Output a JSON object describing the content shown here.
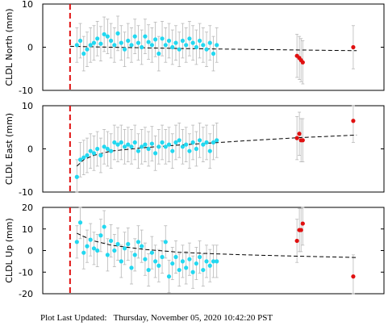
{
  "footer_text": "Plot Last Updated:   Thursday, November 05, 2020 10:42:20 PST",
  "colors": {
    "observed": "#22d8f0",
    "recent": "#e01010",
    "event_line": "#e01010",
    "error_bar": "#b8b8b8",
    "model": "#000000"
  },
  "chart_data": [
    {
      "type": "scatter",
      "ylabel": "CLDL North (mm)",
      "ylim": [
        -10,
        10
      ],
      "yticks": [
        10,
        0,
        -10
      ],
      "event_x": 0.08,
      "observed": [
        {
          "x": 0.1,
          "y": 0.5
        },
        {
          "x": 0.11,
          "y": 1.5
        },
        {
          "x": 0.12,
          "y": -1.5
        },
        {
          "x": 0.13,
          "y": -0.5
        },
        {
          "x": 0.14,
          "y": 0.5
        },
        {
          "x": 0.15,
          "y": 1.0
        },
        {
          "x": 0.16,
          "y": 2.0
        },
        {
          "x": 0.17,
          "y": 0.8
        },
        {
          "x": 0.18,
          "y": 3.0
        },
        {
          "x": 0.19,
          "y": 2.5
        },
        {
          "x": 0.2,
          "y": 1.5
        },
        {
          "x": 0.21,
          "y": 0.5
        },
        {
          "x": 0.22,
          "y": 3.2
        },
        {
          "x": 0.23,
          "y": 1.0
        },
        {
          "x": 0.24,
          "y": -0.5
        },
        {
          "x": 0.25,
          "y": 1.5
        },
        {
          "x": 0.26,
          "y": 0.5
        },
        {
          "x": 0.27,
          "y": 2.5
        },
        {
          "x": 0.28,
          "y": 1.0
        },
        {
          "x": 0.29,
          "y": 0.0
        },
        {
          "x": 0.3,
          "y": 2.5
        },
        {
          "x": 0.31,
          "y": 1.2
        },
        {
          "x": 0.32,
          "y": 0.5
        },
        {
          "x": 0.33,
          "y": 1.8
        },
        {
          "x": 0.34,
          "y": -1.5
        },
        {
          "x": 0.35,
          "y": 2.0
        },
        {
          "x": 0.36,
          "y": 0.5
        },
        {
          "x": 0.37,
          "y": 1.5
        },
        {
          "x": 0.38,
          "y": 0.0
        },
        {
          "x": 0.39,
          "y": 1.0
        },
        {
          "x": 0.4,
          "y": -0.5
        },
        {
          "x": 0.41,
          "y": 1.5
        },
        {
          "x": 0.42,
          "y": 0.5
        },
        {
          "x": 0.43,
          "y": 2.0
        },
        {
          "x": 0.44,
          "y": 1.0
        },
        {
          "x": 0.45,
          "y": 0.0
        },
        {
          "x": 0.46,
          "y": 1.5
        },
        {
          "x": 0.47,
          "y": 0.5
        },
        {
          "x": 0.48,
          "y": -0.5
        },
        {
          "x": 0.49,
          "y": 1.0
        },
        {
          "x": 0.5,
          "y": -1.5
        },
        {
          "x": 0.51,
          "y": 0.5
        }
      ],
      "recent": [
        {
          "x": 0.745,
          "y": -2.0
        },
        {
          "x": 0.752,
          "y": -2.5
        },
        {
          "x": 0.757,
          "y": -3.0
        },
        {
          "x": 0.762,
          "y": -3.5
        },
        {
          "x": 0.91,
          "y": 0.0
        }
      ],
      "error_bars": {
        "observed": 4.0,
        "recent": 5.0
      },
      "model_curve": [
        [
          0.08,
          0.2
        ],
        [
          0.2,
          0.0
        ],
        [
          0.4,
          -0.3
        ],
        [
          0.6,
          -0.5
        ],
        [
          0.8,
          -0.7
        ],
        [
          0.92,
          -0.8
        ]
      ]
    },
    {
      "type": "scatter",
      "ylabel": "CLDL East (mm)",
      "ylim": [
        -10,
        10
      ],
      "yticks": [
        10,
        0,
        -10
      ],
      "event_x": 0.08,
      "observed": [
        {
          "x": 0.1,
          "y": -6.5
        },
        {
          "x": 0.11,
          "y": -2.5
        },
        {
          "x": 0.12,
          "y": -2.0
        },
        {
          "x": 0.13,
          "y": -1.5
        },
        {
          "x": 0.14,
          "y": -0.5
        },
        {
          "x": 0.15,
          "y": -1.0
        },
        {
          "x": 0.16,
          "y": 0.0
        },
        {
          "x": 0.17,
          "y": -1.5
        },
        {
          "x": 0.18,
          "y": 0.5
        },
        {
          "x": 0.19,
          "y": 0.0
        },
        {
          "x": 0.2,
          "y": -0.5
        },
        {
          "x": 0.21,
          "y": 1.5
        },
        {
          "x": 0.22,
          "y": 1.0
        },
        {
          "x": 0.23,
          "y": 1.5
        },
        {
          "x": 0.24,
          "y": 0.5
        },
        {
          "x": 0.25,
          "y": 1.0
        },
        {
          "x": 0.26,
          "y": 0.5
        },
        {
          "x": 0.27,
          "y": 1.5
        },
        {
          "x": 0.28,
          "y": -0.5
        },
        {
          "x": 0.29,
          "y": 0.5
        },
        {
          "x": 0.3,
          "y": 1.0
        },
        {
          "x": 0.31,
          "y": 0.0
        },
        {
          "x": 0.32,
          "y": 1.2
        },
        {
          "x": 0.33,
          "y": -1.0
        },
        {
          "x": 0.34,
          "y": 0.5
        },
        {
          "x": 0.35,
          "y": 1.5
        },
        {
          "x": 0.36,
          "y": 0.5
        },
        {
          "x": 0.37,
          "y": 1.0
        },
        {
          "x": 0.38,
          "y": -0.5
        },
        {
          "x": 0.39,
          "y": 1.5
        },
        {
          "x": 0.4,
          "y": 2.0
        },
        {
          "x": 0.41,
          "y": 0.5
        },
        {
          "x": 0.42,
          "y": 1.0
        },
        {
          "x": 0.43,
          "y": -0.5
        },
        {
          "x": 0.44,
          "y": 1.5
        },
        {
          "x": 0.45,
          "y": 0.0
        },
        {
          "x": 0.46,
          "y": 2.0
        },
        {
          "x": 0.47,
          "y": 1.0
        },
        {
          "x": 0.48,
          "y": 1.5
        },
        {
          "x": 0.49,
          "y": -0.5
        },
        {
          "x": 0.5,
          "y": 1.5
        },
        {
          "x": 0.51,
          "y": 2.0
        }
      ],
      "recent": [
        {
          "x": 0.745,
          "y": 2.5
        },
        {
          "x": 0.752,
          "y": 3.5
        },
        {
          "x": 0.757,
          "y": 2.0
        },
        {
          "x": 0.762,
          "y": 2.0
        },
        {
          "x": 0.91,
          "y": 6.5
        }
      ],
      "error_bars": {
        "observed": 4.0,
        "recent": 5.0
      },
      "model_curve": [
        [
          0.1,
          -4.0
        ],
        [
          0.12,
          -2.5
        ],
        [
          0.15,
          -1.5
        ],
        [
          0.2,
          -0.5
        ],
        [
          0.3,
          0.3
        ],
        [
          0.4,
          0.9
        ],
        [
          0.5,
          1.4
        ],
        [
          0.6,
          1.9
        ],
        [
          0.75,
          2.6
        ],
        [
          0.92,
          3.2
        ]
      ]
    },
    {
      "type": "scatter",
      "ylabel": "CLDL Up (mm)",
      "ylim": [
        -20,
        20
      ],
      "yticks": [
        20,
        10,
        0,
        -10,
        -20
      ],
      "event_x": 0.08,
      "observed": [
        {
          "x": 0.1,
          "y": 4.0
        },
        {
          "x": 0.11,
          "y": 13.0
        },
        {
          "x": 0.12,
          "y": -1.0
        },
        {
          "x": 0.13,
          "y": 2.0
        },
        {
          "x": 0.14,
          "y": 5.0
        },
        {
          "x": 0.15,
          "y": 1.0
        },
        {
          "x": 0.16,
          "y": 0.0
        },
        {
          "x": 0.17,
          "y": 7.0
        },
        {
          "x": 0.18,
          "y": 11.0
        },
        {
          "x": 0.19,
          "y": -2.0
        },
        {
          "x": 0.2,
          "y": 4.5
        },
        {
          "x": 0.21,
          "y": 0.0
        },
        {
          "x": 0.22,
          "y": 3.0
        },
        {
          "x": 0.23,
          "y": -5.0
        },
        {
          "x": 0.24,
          "y": 1.0
        },
        {
          "x": 0.25,
          "y": 3.0
        },
        {
          "x": 0.26,
          "y": -8.0
        },
        {
          "x": 0.27,
          "y": -2.0
        },
        {
          "x": 0.28,
          "y": 4.0
        },
        {
          "x": 0.29,
          "y": 2.0
        },
        {
          "x": 0.3,
          "y": -4.0
        },
        {
          "x": 0.31,
          "y": -9.0
        },
        {
          "x": 0.32,
          "y": -1.0
        },
        {
          "x": 0.33,
          "y": -5.0
        },
        {
          "x": 0.34,
          "y": -7.0
        },
        {
          "x": 0.35,
          "y": -3.0
        },
        {
          "x": 0.36,
          "y": 4.0
        },
        {
          "x": 0.37,
          "y": -12.0
        },
        {
          "x": 0.38,
          "y": -6.0
        },
        {
          "x": 0.39,
          "y": -3.0
        },
        {
          "x": 0.4,
          "y": -9.0
        },
        {
          "x": 0.41,
          "y": -5.0
        },
        {
          "x": 0.42,
          "y": -8.0
        },
        {
          "x": 0.43,
          "y": -4.0
        },
        {
          "x": 0.44,
          "y": -10.0
        },
        {
          "x": 0.45,
          "y": -6.0
        },
        {
          "x": 0.46,
          "y": -3.0
        },
        {
          "x": 0.47,
          "y": -9.0
        },
        {
          "x": 0.48,
          "y": -5.0
        },
        {
          "x": 0.49,
          "y": -7.0
        },
        {
          "x": 0.5,
          "y": -5.0
        },
        {
          "x": 0.51,
          "y": -5.0
        }
      ],
      "recent": [
        {
          "x": 0.745,
          "y": 4.5
        },
        {
          "x": 0.752,
          "y": 9.5
        },
        {
          "x": 0.757,
          "y": 9.5
        },
        {
          "x": 0.762,
          "y": 12.5
        },
        {
          "x": 0.91,
          "y": -12.0
        }
      ],
      "error_bars": {
        "observed": 7.5,
        "recent": 10.0
      },
      "model_curve": [
        [
          0.1,
          8.0
        ],
        [
          0.12,
          6.5
        ],
        [
          0.15,
          4.5
        ],
        [
          0.2,
          2.5
        ],
        [
          0.3,
          0.5
        ],
        [
          0.4,
          -0.8
        ],
        [
          0.5,
          -1.5
        ],
        [
          0.6,
          -2.0
        ],
        [
          0.75,
          -2.6
        ],
        [
          0.92,
          -3.2
        ]
      ]
    }
  ]
}
